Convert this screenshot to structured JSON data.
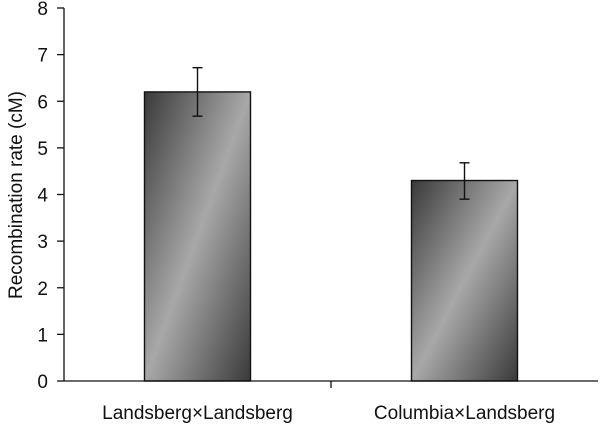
{
  "chart_data": {
    "type": "bar",
    "title": "",
    "xlabel": "",
    "ylabel": "Recombination rate (cM)",
    "ylim": [
      0,
      8
    ],
    "yticks": [
      "0",
      "1",
      "2",
      "3",
      "4",
      "5",
      "6",
      "7",
      "8"
    ],
    "categories": [
      "Landsberg×Landsberg",
      "Columbia×Landsberg"
    ],
    "values": [
      6.2,
      4.3
    ],
    "error_low": [
      5.68,
      3.9
    ],
    "error_high": [
      6.72,
      4.68
    ],
    "grid": false,
    "legend": "none",
    "bar_color_dark": "#3a3a3a",
    "bar_color_light": "#a8a8a8"
  }
}
